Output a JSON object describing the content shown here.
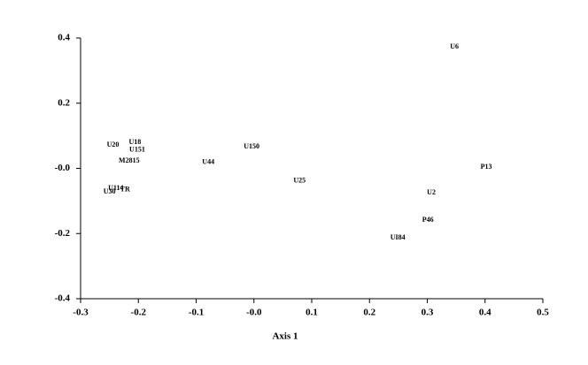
{
  "chart_data": {
    "type": "scatter",
    "xlabel": "Axis 1",
    "labels": [
      "U6",
      "U20",
      "U18",
      "U151",
      "M2815",
      "U44",
      "U150",
      "U25",
      "P13",
      "U2",
      "P46",
      "UI84",
      "U30",
      "U114",
      "TR"
    ],
    "x": [
      0.347,
      -0.244,
      -0.206,
      -0.202,
      -0.216,
      -0.079,
      -0.004,
      0.079,
      0.402,
      0.307,
      0.301,
      0.249,
      -0.25,
      -0.239,
      -0.223
    ],
    "values": [
      0.373,
      0.072,
      0.08,
      0.056,
      0.023,
      0.018,
      0.066,
      -0.039,
      0.004,
      -0.075,
      -0.159,
      -0.213,
      -0.072,
      -0.062,
      -0.065
    ],
    "xlim": [
      -0.3,
      0.5
    ],
    "ylim": [
      -0.4,
      0.4
    ],
    "xticks": [
      -0.3,
      -0.2,
      -0.1,
      {
        "value": 0,
        "label": "-0.0"
      },
      0.1,
      0.2,
      0.3,
      0.4,
      0.5
    ],
    "yticks": [
      {
        "value": -0.4,
        "label": "-0.4"
      },
      {
        "value": -0.2,
        "label": "-0.2"
      },
      {
        "value": 0,
        "label": "-0.0"
      },
      0.2,
      0.4
    ]
  }
}
